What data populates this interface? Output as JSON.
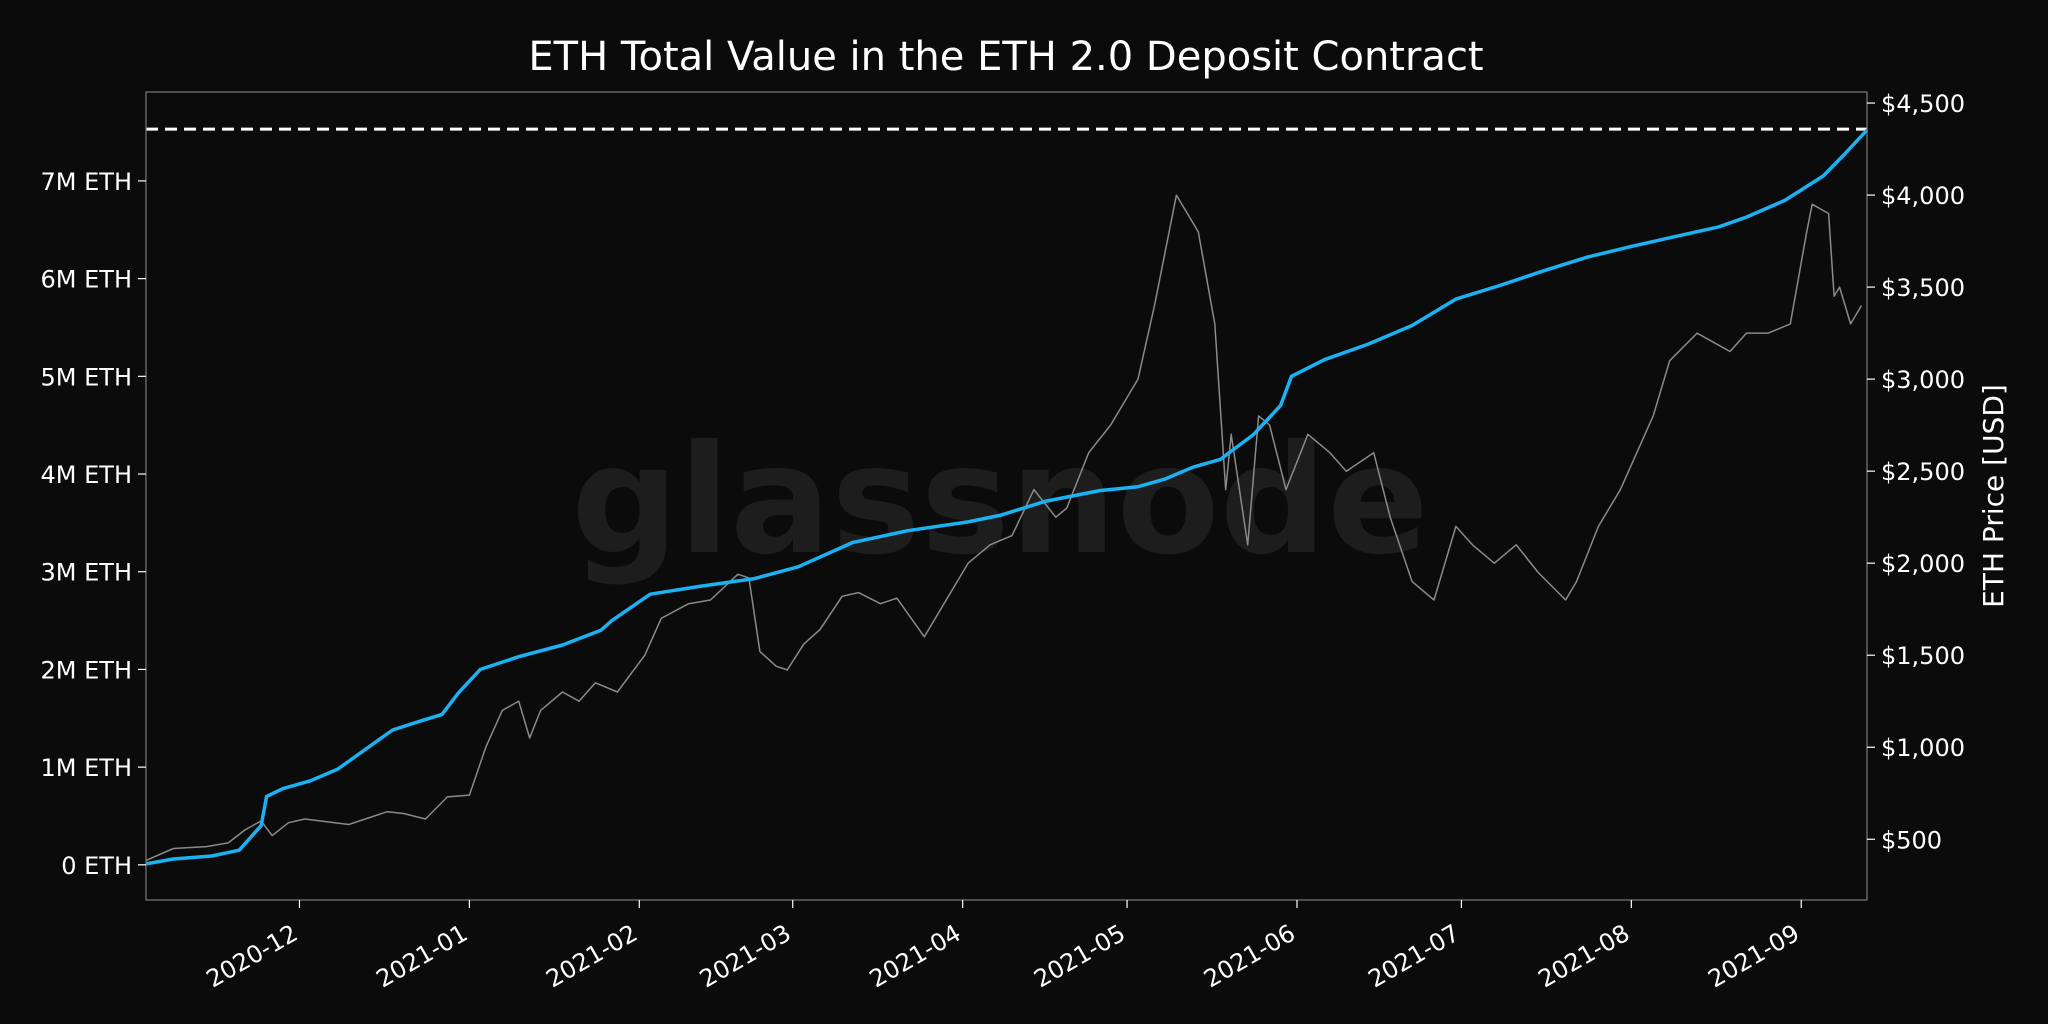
{
  "watermark": "glassnode",
  "chart_data": {
    "type": "line",
    "title": "ETH Total Value in the ETH 2.0 Deposit Contract",
    "xlabel": "",
    "ylabel_left": "",
    "ylabel_right": "ETH Price [USD]",
    "x_range": [
      "2020-11-03",
      "2021-09-13"
    ],
    "ylim_left": [
      -360000,
      7910000
    ],
    "ylim_right": [
      170,
      4560
    ],
    "grid": false,
    "legend": "none",
    "x_ticks": [
      {
        "date": "2020-12-01",
        "label": "2020-12"
      },
      {
        "date": "2021-01-01",
        "label": "2021-01"
      },
      {
        "date": "2021-02-01",
        "label": "2021-02"
      },
      {
        "date": "2021-03-01",
        "label": "2021-03"
      },
      {
        "date": "2021-04-01",
        "label": "2021-04"
      },
      {
        "date": "2021-05-01",
        "label": "2021-05"
      },
      {
        "date": "2021-06-01",
        "label": "2021-06"
      },
      {
        "date": "2021-07-01",
        "label": "2021-07"
      },
      {
        "date": "2021-08-01",
        "label": "2021-08"
      },
      {
        "date": "2021-09-01",
        "label": "2021-09"
      }
    ],
    "y_ticks_left": [
      {
        "value": 0,
        "label": "0 ETH"
      },
      {
        "value": 1000000,
        "label": "1M ETH"
      },
      {
        "value": 2000000,
        "label": "2M ETH"
      },
      {
        "value": 3000000,
        "label": "3M ETH"
      },
      {
        "value": 4000000,
        "label": "4M ETH"
      },
      {
        "value": 5000000,
        "label": "5M ETH"
      },
      {
        "value": 6000000,
        "label": "6M ETH"
      },
      {
        "value": 7000000,
        "label": "7M ETH"
      }
    ],
    "y_ticks_right": [
      {
        "value": 500,
        "label": "$500"
      },
      {
        "value": 1000,
        "label": "$1,000"
      },
      {
        "value": 1500,
        "label": "$1,500"
      },
      {
        "value": 2000,
        "label": "$2,000"
      },
      {
        "value": 2500,
        "label": "$2,500"
      },
      {
        "value": 3000,
        "label": "$3,000"
      },
      {
        "value": 3500,
        "label": "$3,500"
      },
      {
        "value": 4000,
        "label": "$4,000"
      },
      {
        "value": 4500,
        "label": "$4,500"
      }
    ],
    "reference_line": {
      "value": 7530000,
      "axis": "left",
      "style": "dashed",
      "color": "#ffffff"
    },
    "series": [
      {
        "axis": "left",
        "color": "#1ab2f2",
        "x": [
          "2020-11-03",
          "2020-11-08",
          "2020-11-15",
          "2020-11-20",
          "2020-11-24",
          "2020-11-25",
          "2020-11-28",
          "2020-12-03",
          "2020-12-08",
          "2020-12-13",
          "2020-12-18",
          "2020-12-23",
          "2020-12-27",
          "2020-12-30",
          "2021-01-03",
          "2021-01-10",
          "2021-01-18",
          "2021-01-25",
          "2021-01-27",
          "2021-02-03",
          "2021-02-12",
          "2021-02-22",
          "2021-03-02",
          "2021-03-12",
          "2021-03-22",
          "2021-04-02",
          "2021-04-08",
          "2021-04-16",
          "2021-04-26",
          "2021-05-03",
          "2021-05-08",
          "2021-05-13",
          "2021-05-18",
          "2021-05-24",
          "2021-05-29",
          "2021-05-31",
          "2021-06-06",
          "2021-06-14",
          "2021-06-22",
          "2021-06-30",
          "2021-07-08",
          "2021-07-16",
          "2021-07-24",
          "2021-08-01",
          "2021-08-09",
          "2021-08-17",
          "2021-08-22",
          "2021-08-29",
          "2021-09-05",
          "2021-09-09",
          "2021-09-13"
        ],
        "values": [
          10000,
          60000,
          90000,
          150000,
          400000,
          700000,
          780000,
          860000,
          980000,
          1180000,
          1380000,
          1470000,
          1540000,
          1760000,
          2000000,
          2130000,
          2250000,
          2400000,
          2500000,
          2770000,
          2850000,
          2930000,
          3050000,
          3300000,
          3420000,
          3510000,
          3580000,
          3720000,
          3830000,
          3870000,
          3950000,
          4070000,
          4150000,
          4400000,
          4700000,
          5000000,
          5170000,
          5330000,
          5520000,
          5790000,
          5930000,
          6080000,
          6220000,
          6330000,
          6430000,
          6530000,
          6630000,
          6800000,
          7050000,
          7280000,
          7520000
        ]
      },
      {
        "axis": "right",
        "color": "#8a8a8a",
        "x": [
          "2020-11-03",
          "2020-11-08",
          "2020-11-14",
          "2020-11-18",
          "2020-11-21",
          "2020-11-24",
          "2020-11-26",
          "2020-11-29",
          "2020-12-02",
          "2020-12-10",
          "2020-12-17",
          "2020-12-20",
          "2020-12-24",
          "2020-12-28",
          "2021-01-01",
          "2021-01-04",
          "2021-01-07",
          "2021-01-10",
          "2021-01-12",
          "2021-01-14",
          "2021-01-18",
          "2021-01-21",
          "2021-01-24",
          "2021-01-28",
          "2021-02-02",
          "2021-02-05",
          "2021-02-10",
          "2021-02-14",
          "2021-02-19",
          "2021-02-21",
          "2021-02-23",
          "2021-02-26",
          "2021-02-28",
          "2021-03-03",
          "2021-03-06",
          "2021-03-10",
          "2021-03-13",
          "2021-03-17",
          "2021-03-20",
          "2021-03-25",
          "2021-03-29",
          "2021-04-02",
          "2021-04-06",
          "2021-04-10",
          "2021-04-14",
          "2021-04-18",
          "2021-04-20",
          "2021-04-24",
          "2021-04-28",
          "2021-05-03",
          "2021-05-06",
          "2021-05-10",
          "2021-05-12",
          "2021-05-14",
          "2021-05-17",
          "2021-05-19",
          "2021-05-20",
          "2021-05-23",
          "2021-05-25",
          "2021-05-27",
          "2021-05-30",
          "2021-06-03",
          "2021-06-07",
          "2021-06-10",
          "2021-06-15",
          "2021-06-18",
          "2021-06-22",
          "2021-06-26",
          "2021-06-30",
          "2021-07-03",
          "2021-07-07",
          "2021-07-11",
          "2021-07-15",
          "2021-07-20",
          "2021-07-22",
          "2021-07-26",
          "2021-07-30",
          "2021-08-02",
          "2021-08-05",
          "2021-08-08",
          "2021-08-13",
          "2021-08-16",
          "2021-08-19",
          "2021-08-22",
          "2021-08-26",
          "2021-08-30",
          "2021-09-02",
          "2021-09-03",
          "2021-09-06",
          "2021-09-07",
          "2021-09-08",
          "2021-09-10",
          "2021-09-12"
        ],
        "values": [
          385,
          450,
          460,
          480,
          550,
          600,
          520,
          590,
          610,
          580,
          650,
          640,
          610,
          730,
          740,
          1000,
          1200,
          1250,
          1050,
          1200,
          1300,
          1250,
          1350,
          1300,
          1500,
          1700,
          1780,
          1800,
          1940,
          1920,
          1520,
          1440,
          1420,
          1560,
          1640,
          1820,
          1840,
          1780,
          1810,
          1600,
          1800,
          2000,
          2100,
          2150,
          2400,
          2250,
          2300,
          2600,
          2750,
          3000,
          3400,
          4000,
          3900,
          3800,
          3300,
          2400,
          2700,
          2100,
          2800,
          2750,
          2400,
          2700,
          2600,
          2500,
          2600,
          2250,
          1900,
          1800,
          2200,
          2100,
          2000,
          2100,
          1950,
          1800,
          1900,
          2200,
          2400,
          2600,
          2800,
          3100,
          3250,
          3200,
          3150,
          3250,
          3250,
          3300,
          3800,
          3950,
          3900,
          3450,
          3500,
          3300,
          3400
        ]
      }
    ]
  }
}
